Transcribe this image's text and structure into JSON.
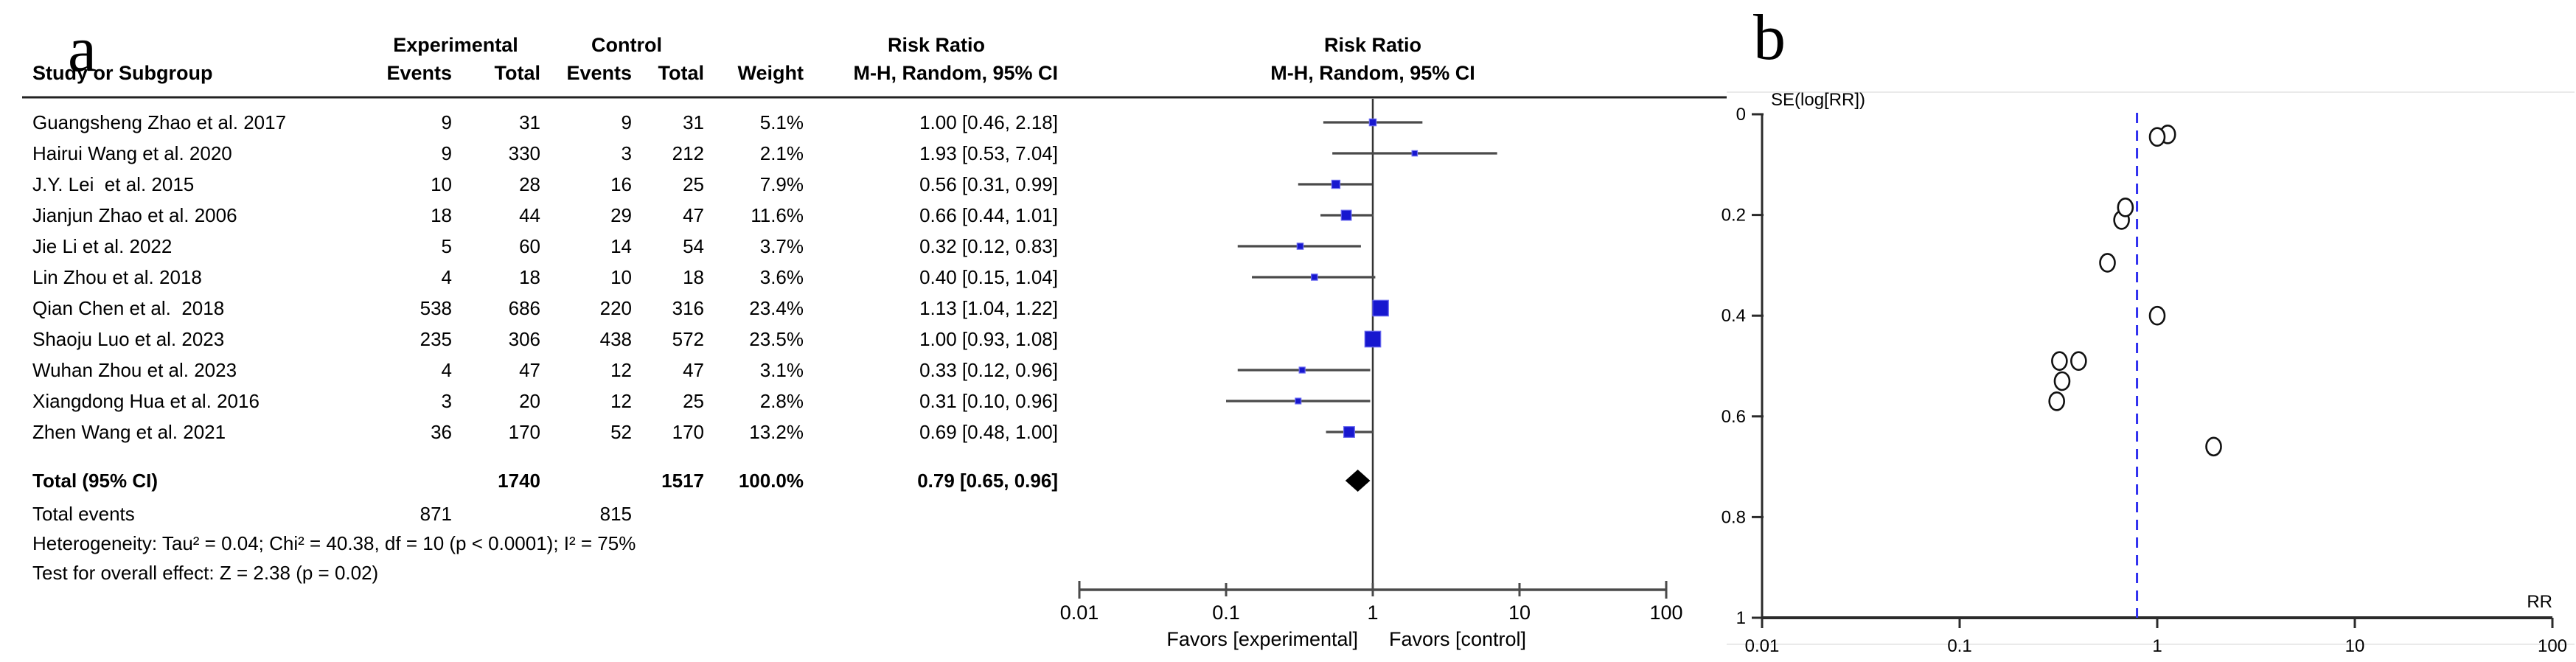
{
  "figure": {
    "panel_a_label": "a",
    "panel_b_label": "b"
  },
  "colors": {
    "square_blue": "#1717cf",
    "square_halo": "#6a6af0",
    "diamond_black": "#000000",
    "ci_line_gray": "#4a4a4a",
    "axis_dark": "#333333",
    "dashed_blue": "#3030ef",
    "panel_b_border": "#eaeaea"
  },
  "panel_a": {
    "headers": {
      "group_experimental": "Experimental",
      "group_control": "Control",
      "risk_ratio": "Risk Ratio",
      "study": "Study or Subgroup",
      "events": "Events",
      "total": "Total",
      "events2": "Events",
      "total2": "Total",
      "weight": "Weight",
      "mh_ci": "M-H, Random, 95% CI"
    },
    "plot_headers": {
      "risk_ratio": "Risk Ratio",
      "mh_ci": "M-H, Random, 95% CI"
    },
    "rows": [
      {
        "study": "Guangsheng Zhao et al. 2017",
        "e_events": "9",
        "e_total": "31",
        "c_events": "9",
        "c_total": "31",
        "weight": "5.1%",
        "rr_text": "1.00 [0.46, 2.18]"
      },
      {
        "study": "Hairui Wang et al. 2020",
        "e_events": "9",
        "e_total": "330",
        "c_events": "3",
        "c_total": "212",
        "weight": "2.1%",
        "rr_text": "1.93 [0.53, 7.04]"
      },
      {
        "study": "J.Y. Lei  et al. 2015",
        "e_events": "10",
        "e_total": "28",
        "c_events": "16",
        "c_total": "25",
        "weight": "7.9%",
        "rr_text": "0.56 [0.31, 0.99]"
      },
      {
        "study": "Jianjun Zhao et al. 2006",
        "e_events": "18",
        "e_total": "44",
        "c_events": "29",
        "c_total": "47",
        "weight": "11.6%",
        "rr_text": "0.66 [0.44, 1.01]"
      },
      {
        "study": "Jie Li et al. 2022",
        "e_events": "5",
        "e_total": "60",
        "c_events": "14",
        "c_total": "54",
        "weight": "3.7%",
        "rr_text": "0.32 [0.12, 0.83]"
      },
      {
        "study": "Lin Zhou et al. 2018",
        "e_events": "4",
        "e_total": "18",
        "c_events": "10",
        "c_total": "18",
        "weight": "3.6%",
        "rr_text": "0.40 [0.15, 1.04]"
      },
      {
        "study": "Qian Chen et al.  2018",
        "e_events": "538",
        "e_total": "686",
        "c_events": "220",
        "c_total": "316",
        "weight": "23.4%",
        "rr_text": "1.13 [1.04, 1.22]"
      },
      {
        "study": "Shaoju Luo et al. 2023",
        "e_events": "235",
        "e_total": "306",
        "c_events": "438",
        "c_total": "572",
        "weight": "23.5%",
        "rr_text": "1.00 [0.93, 1.08]"
      },
      {
        "study": "Wuhan Zhou et al. 2023",
        "e_events": "4",
        "e_total": "47",
        "c_events": "12",
        "c_total": "47",
        "weight": "3.1%",
        "rr_text": "0.33 [0.12, 0.96]"
      },
      {
        "study": "Xiangdong Hua et al. 2016",
        "e_events": "3",
        "e_total": "20",
        "c_events": "12",
        "c_total": "25",
        "weight": "2.8%",
        "rr_text": "0.31 [0.10, 0.96]"
      },
      {
        "study": "Zhen Wang et al. 2021",
        "e_events": "36",
        "e_total": "170",
        "c_events": "52",
        "c_total": "170",
        "weight": "13.2%",
        "rr_text": "0.69 [0.48, 1.00]"
      }
    ],
    "total_row": {
      "label": "Total (95% CI)",
      "e_total": "1740",
      "c_total": "1517",
      "weight": "100.0%",
      "rr_text": "0.79 [0.65, 0.96]"
    },
    "total_events": {
      "label": "Total events",
      "e_events": "871",
      "c_events": "815"
    },
    "heterogeneity": "Heterogeneity: Tau² = 0.04; Chi² = 40.38, df = 10 (p < 0.0001); I² = 75%",
    "overall_effect": "Test for overall effect: Z = 2.38 (p = 0.02)",
    "favors_left": "Favors [experimental]",
    "favors_right": "Favors [control]"
  },
  "panel_b": {
    "ylabel": "SE(log[RR])",
    "xlabel": "RR"
  },
  "chart_data": [
    {
      "type": "forest",
      "title": "Risk Ratio",
      "subtitle": "M-H, Random, 95% CI",
      "x_scale": "log",
      "x_ticks": [
        0.01,
        0.1,
        1,
        10,
        100
      ],
      "x_range": [
        0.01,
        100
      ],
      "null_line": 1,
      "studies": [
        "Guangsheng Zhao et al. 2017",
        "Hairui Wang et al. 2020",
        "J.Y. Lei et al. 2015",
        "Jianjun Zhao et al. 2006",
        "Jie Li et al. 2022",
        "Lin Zhou et al. 2018",
        "Qian Chen et al. 2018",
        "Shaoju Luo et al. 2023",
        "Wuhan Zhou et al. 2023",
        "Xiangdong Hua et al. 2016",
        "Zhen Wang et al. 2021"
      ],
      "rr": [
        1.0,
        1.93,
        0.56,
        0.66,
        0.32,
        0.4,
        1.13,
        1.0,
        0.33,
        0.31,
        0.69
      ],
      "ci_low": [
        0.46,
        0.53,
        0.31,
        0.44,
        0.12,
        0.15,
        1.04,
        0.93,
        0.12,
        0.1,
        0.48
      ],
      "ci_high": [
        2.18,
        7.04,
        0.99,
        1.01,
        0.83,
        1.04,
        1.22,
        1.08,
        0.96,
        0.96,
        1.0
      ],
      "weights_pct": [
        5.1,
        2.1,
        7.9,
        11.6,
        3.7,
        3.6,
        23.4,
        23.5,
        3.1,
        2.8,
        13.2
      ],
      "total": {
        "rr": 0.79,
        "ci_low": 0.65,
        "ci_high": 0.96
      },
      "favors": [
        "Favors [experimental]",
        "Favors [control]"
      ]
    },
    {
      "type": "scatter",
      "variant": "funnel",
      "xlabel": "RR",
      "ylabel": "SE(log[RR])",
      "x_scale": "log",
      "x_ticks": [
        0.01,
        0.1,
        1,
        10,
        100
      ],
      "x_range": [
        0.01,
        100
      ],
      "y_ticks": [
        0,
        0.2,
        0.4,
        0.6,
        0.8,
        1
      ],
      "y_range": [
        0,
        1
      ],
      "y_inverted": true,
      "pooled_rr": 0.79,
      "points": [
        {
          "rr": 1.0,
          "se": 0.4
        },
        {
          "rr": 1.93,
          "se": 0.66
        },
        {
          "rr": 0.56,
          "se": 0.295
        },
        {
          "rr": 0.66,
          "se": 0.21
        },
        {
          "rr": 0.32,
          "se": 0.49
        },
        {
          "rr": 0.4,
          "se": 0.49
        },
        {
          "rr": 1.13,
          "se": 0.04
        },
        {
          "rr": 1.0,
          "se": 0.045
        },
        {
          "rr": 0.33,
          "se": 0.53
        },
        {
          "rr": 0.31,
          "se": 0.57
        },
        {
          "rr": 0.69,
          "se": 0.185
        }
      ]
    }
  ]
}
